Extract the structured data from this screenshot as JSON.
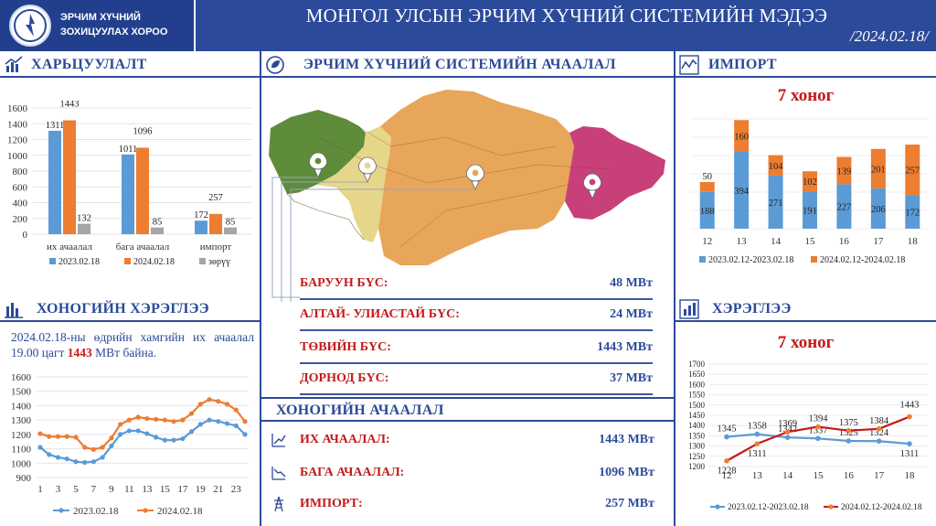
{
  "header": {
    "org_line1": "ЭРЧИМ ХҮЧНИЙ",
    "org_line2": "ЗОХИЦУУЛАХ ХОРОО",
    "title": "МОНГОЛ УЛСЫН ЭРЧИМ ХҮЧНИЙ СИСТЕМИЙН МЭДЭЭ",
    "date": "/2024.02.18/"
  },
  "colors": {
    "blue": "#5b9bd5",
    "orange": "#ed7d31",
    "gray": "#a5a5a5",
    "navy": "#2c4a9a",
    "red": "#c41a1a"
  },
  "comparison": {
    "title": "ХАРЬЦУУЛАЛТ",
    "chart_data": {
      "type": "bar",
      "categories": [
        "их ачаалал",
        "бага ачаалал",
        "импорт"
      ],
      "series": [
        {
          "name": "2023.02.18",
          "values": [
            1311,
            1011,
            172
          ]
        },
        {
          "name": "2024.02.18",
          "values": [
            1443,
            1096,
            257
          ]
        },
        {
          "name": "зөрүү",
          "values": [
            132,
            85,
            85
          ]
        }
      ],
      "yticks": [
        0,
        200,
        400,
        600,
        800,
        1000,
        1200,
        1400,
        1600
      ],
      "ylim": [
        0,
        1600
      ],
      "legend": "bottom"
    }
  },
  "system_load": {
    "title": "ЭРЧИМ ХҮЧНИЙ СИСТЕМИЙН АЧААЛАЛ",
    "regions": [
      {
        "name": "БАРУУН БҮС:",
        "value": "48 МВт"
      },
      {
        "name": "АЛТАЙ- УЛИАСТАЙ БҮС:",
        "value": "24 МВт"
      },
      {
        "name": "ТӨВИЙН БҮС:",
        "value": "1443 МВт"
      },
      {
        "name": "ДОРНОД БҮС:",
        "value": "37 МВт"
      }
    ]
  },
  "import": {
    "title": "ИМПОРТ",
    "week_label": "7 хоног",
    "chart_data": {
      "type": "bar",
      "stacked": true,
      "categories": [
        "12",
        "13",
        "14",
        "15",
        "16",
        "17",
        "18"
      ],
      "series": [
        {
          "name": "2023.02.12-2023.02.18",
          "values": [
            188,
            394,
            271,
            191,
            227,
            206,
            172
          ]
        },
        {
          "name": "2024.02.12-2024.02.18",
          "values": [
            50,
            160,
            104,
            102,
            139,
            201,
            257
          ]
        }
      ],
      "legend": "bottom"
    }
  },
  "daily_consumption": {
    "title": "ХОНОГИЙН ХЭРЭГЛЭЭ",
    "note_before": "2024.02.18-ны өдрийн хамгийн их ачаалал 19.00 цагт ",
    "note_value": "1443",
    "note_after": " МВт байна.",
    "chart_data": {
      "type": "line",
      "x": [
        1,
        2,
        3,
        4,
        5,
        6,
        7,
        8,
        9,
        10,
        11,
        12,
        13,
        14,
        15,
        16,
        17,
        18,
        19,
        20,
        21,
        22,
        23,
        24
      ],
      "xticks": [
        "1",
        "3",
        "5",
        "7",
        "9",
        "11",
        "13",
        "15",
        "17",
        "19",
        "21",
        "23"
      ],
      "yticks": [
        900,
        1000,
        1100,
        1200,
        1300,
        1400,
        1500,
        1600
      ],
      "ylim": [
        900,
        1600
      ],
      "series": [
        {
          "name": "2023.02.18",
          "values": [
            1110,
            1060,
            1040,
            1030,
            1010,
            1005,
            1010,
            1040,
            1120,
            1200,
            1225,
            1225,
            1205,
            1180,
            1160,
            1160,
            1170,
            1220,
            1270,
            1300,
            1290,
            1275,
            1260,
            1200
          ]
        },
        {
          "name": "2024.02.18",
          "values": [
            1205,
            1185,
            1185,
            1185,
            1180,
            1110,
            1095,
            1110,
            1175,
            1270,
            1300,
            1320,
            1310,
            1305,
            1300,
            1290,
            1300,
            1345,
            1410,
            1443,
            1430,
            1410,
            1370,
            1290
          ]
        }
      ],
      "legend": "bottom"
    }
  },
  "daily_load": {
    "title": "ХОНОГИЙН АЧААЛАЛ",
    "rows": [
      {
        "name": "ИХ АЧААЛАЛ:",
        "value": "1443 МВт"
      },
      {
        "name": "БАГА АЧААЛАЛ:",
        "value": "1096 МВт"
      },
      {
        "name": "ИМПОРТ:",
        "value": "257 МВт"
      }
    ]
  },
  "consumption": {
    "title": "ХЭРЭГЛЭЭ",
    "week_label": "7 хоног",
    "chart_data": {
      "type": "line",
      "categories": [
        "12",
        "13",
        "14",
        "15",
        "16",
        "17",
        "18"
      ],
      "yticks": [
        1200,
        1250,
        1300,
        1350,
        1400,
        1450,
        1500,
        1550,
        1600,
        1650,
        1700
      ],
      "ylim": [
        1200,
        1700
      ],
      "series": [
        {
          "name": "2023.02.12-2023.02.18",
          "values": [
            1345,
            1358,
            1342,
            1337,
            1325,
            1324,
            1311
          ]
        },
        {
          "name": "2024.02.12-2024.02.18",
          "values": [
            1228,
            1311,
            1369,
            1394,
            1375,
            1384,
            1443
          ]
        }
      ],
      "legend": "bottom"
    }
  }
}
